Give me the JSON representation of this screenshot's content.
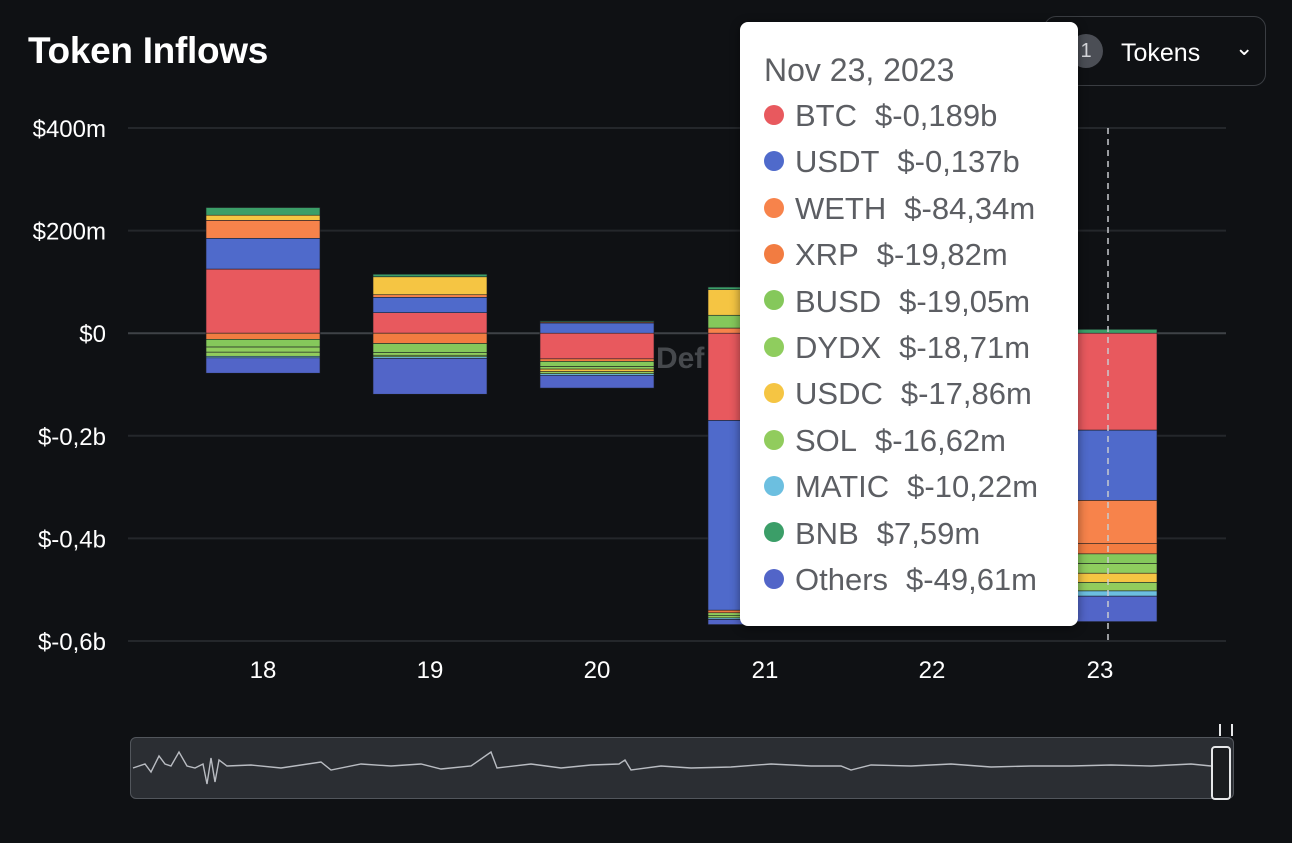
{
  "header": {
    "title": "Token Inflows"
  },
  "token_selector": {
    "count": "1",
    "label": "Tokens",
    "caret": "⌄"
  },
  "watermark": "Def",
  "colors": {
    "background": "#0f1114",
    "BTC": "#e8595e",
    "USDT": "#4f6acb",
    "WETH": "#f7834b",
    "XRP": "#f27c41",
    "BUSD": "#85c85b",
    "DYDX": "#8fcd5e",
    "USDC": "#f5c543",
    "SOL": "#91cc5d",
    "MATIC": "#6cbfe0",
    "BNB": "#3b9e68",
    "Others": "#5265c8",
    "Purple": "#8a5ab8"
  },
  "tooltip": {
    "date": "Nov 23, 2023",
    "rows": [
      {
        "token": "BTC",
        "value": "$-0,189b",
        "color": "#e8595e"
      },
      {
        "token": "USDT",
        "value": "$-0,137b",
        "color": "#4f6acb"
      },
      {
        "token": "WETH",
        "value": "$-84,34m",
        "color": "#f7834b"
      },
      {
        "token": "XRP",
        "value": "$-19,82m",
        "color": "#f27c41"
      },
      {
        "token": "BUSD",
        "value": "$-19,05m",
        "color": "#85c85b"
      },
      {
        "token": "DYDX",
        "value": "$-18,71m",
        "color": "#8fcd5e"
      },
      {
        "token": "USDC",
        "value": "$-17,86m",
        "color": "#f5c543"
      },
      {
        "token": "SOL",
        "value": "$-16,62m",
        "color": "#91cc5d"
      },
      {
        "token": "MATIC",
        "value": "$-10,22m",
        "color": "#6cbfe0"
      },
      {
        "token": "BNB",
        "value": "$7,59m",
        "color": "#3b9e68"
      },
      {
        "token": "Others",
        "value": "$-49,61m",
        "color": "#5265c8"
      }
    ]
  },
  "chart_data": {
    "type": "bar",
    "stacked": true,
    "title": "Token Inflows",
    "x_unit": "day of Nov 2023",
    "categories": [
      "18",
      "19",
      "20",
      "21",
      "22",
      "23"
    ],
    "ylim": [
      -600,
      400
    ],
    "y_unit": "$m",
    "y_ticks": [
      {
        "value": 400,
        "label": "$400m"
      },
      {
        "value": 200,
        "label": "$200m"
      },
      {
        "value": 0,
        "label": "$0"
      },
      {
        "value": -200,
        "label": "$-0,2b"
      },
      {
        "value": -400,
        "label": "$-0,4b"
      },
      {
        "value": -600,
        "label": "$-0,6b"
      }
    ],
    "highlight_category": "23",
    "series": [
      {
        "name": "BTC",
        "color": "#e8595e",
        "values": [
          125,
          40,
          -50,
          -170,
          null,
          -189
        ]
      },
      {
        "name": "USDT",
        "color": "#4f6acb",
        "values": [
          60,
          30,
          20,
          -370,
          null,
          -137
        ]
      },
      {
        "name": "WETH",
        "color": "#f7834b",
        "values": [
          35,
          5,
          2,
          10,
          null,
          -84.34
        ]
      },
      {
        "name": "XRP",
        "color": "#f27c41",
        "values": [
          -12,
          -20,
          -5,
          -5,
          null,
          -19.82
        ]
      },
      {
        "name": "BUSD",
        "color": "#85c85b",
        "values": [
          -15,
          -18,
          -10,
          25,
          null,
          -19.05
        ]
      },
      {
        "name": "DYDX",
        "color": "#8fcd5e",
        "values": [
          -10,
          -5,
          -5,
          -5,
          null,
          -18.71
        ]
      },
      {
        "name": "USDC",
        "color": "#f5c543",
        "values": [
          10,
          35,
          -5,
          50,
          null,
          -17.86
        ]
      },
      {
        "name": "SOL",
        "color": "#91cc5d",
        "values": [
          -8,
          -3,
          -4,
          -5,
          null,
          -16.62
        ]
      },
      {
        "name": "MATIC",
        "color": "#6cbfe0",
        "values": [
          -3,
          -3,
          -3,
          -3,
          null,
          -10.22
        ]
      },
      {
        "name": "BNB",
        "color": "#3b9e68",
        "values": [
          15,
          5,
          2,
          5,
          null,
          7.59
        ]
      },
      {
        "name": "Others",
        "color": "#5265c8",
        "values": [
          -30,
          -70,
          -25,
          -10,
          null,
          -49.61
        ]
      }
    ]
  },
  "brush": {
    "range_label": ""
  }
}
